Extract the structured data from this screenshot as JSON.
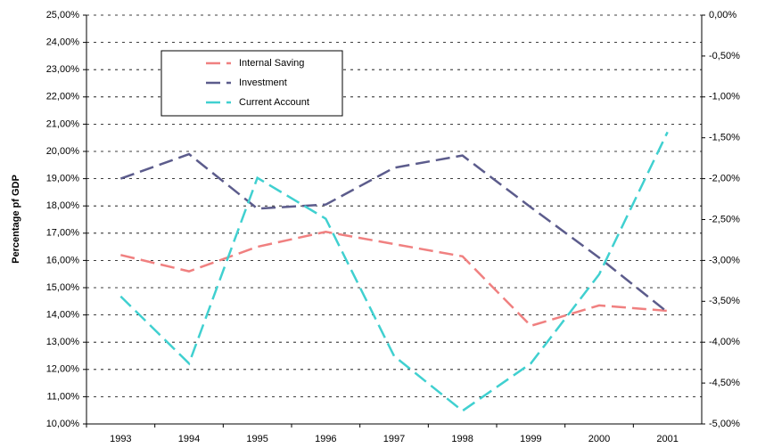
{
  "chart_data": {
    "type": "line",
    "y_label": "Percentage pf GDP",
    "categories": [
      "1993",
      "1994",
      "1995",
      "1996",
      "1997",
      "1998",
      "1999",
      "2000",
      "2001"
    ],
    "series": [
      {
        "name": "Internal Saving",
        "color": "#f08080",
        "values": [
          16.2,
          15.6,
          16.5,
          17.05,
          16.6,
          16.15,
          13.6,
          14.35,
          14.15
        ]
      },
      {
        "name": "Investment",
        "color": "#5c5c8c",
        "values": [
          19.0,
          19.9,
          17.9,
          18.05,
          19.4,
          19.85,
          17.95,
          16.1,
          14.1
        ]
      },
      {
        "name": "Current Account",
        "color": "#40d0d0",
        "axis": "y2",
        "values": [
          -3.44,
          -4.26,
          -1.99,
          -2.49,
          -4.17,
          -4.84,
          -4.26,
          -3.17,
          -1.43
        ]
      }
    ],
    "ylim": [
      10,
      25
    ],
    "yticks": [
      {
        "value": 10,
        "label": "10,00%"
      },
      {
        "value": 11,
        "label": "11,00%"
      },
      {
        "value": 12,
        "label": "12,00%"
      },
      {
        "value": 13,
        "label": "13,00%"
      },
      {
        "value": 14,
        "label": "14,00%"
      },
      {
        "value": 15,
        "label": "15,00%"
      },
      {
        "value": 16,
        "label": "16,00%"
      },
      {
        "value": 17,
        "label": "17,00%"
      },
      {
        "value": 18,
        "label": "18,00%"
      },
      {
        "value": 19,
        "label": "19,00%"
      },
      {
        "value": 20,
        "label": "20,00%"
      },
      {
        "value": 21,
        "label": "21,00%"
      },
      {
        "value": 22,
        "label": "22,00%"
      },
      {
        "value": 23,
        "label": "23,00%"
      },
      {
        "value": 24,
        "label": "24,00%"
      },
      {
        "value": 25,
        "label": "25,00%"
      }
    ],
    "y2lim": [
      -5,
      0
    ],
    "y2ticks": [
      {
        "value": -5,
        "label": "-5,00%"
      },
      {
        "value": -4.5,
        "label": "-4,50%"
      },
      {
        "value": -4,
        "label": "-4,00%"
      },
      {
        "value": -3.5,
        "label": "-3,50%"
      },
      {
        "value": -3,
        "label": "-3,00%"
      },
      {
        "value": -2.5,
        "label": "-2,50%"
      },
      {
        "value": -2,
        "label": "-2,00%"
      },
      {
        "value": -1.5,
        "label": "-1,50%"
      },
      {
        "value": -1,
        "label": "-1,00%"
      },
      {
        "value": -0.5,
        "label": "-0,50%"
      },
      {
        "value": 0,
        "label": "0,00%"
      }
    ],
    "grid": true,
    "legend": "upper-left"
  }
}
